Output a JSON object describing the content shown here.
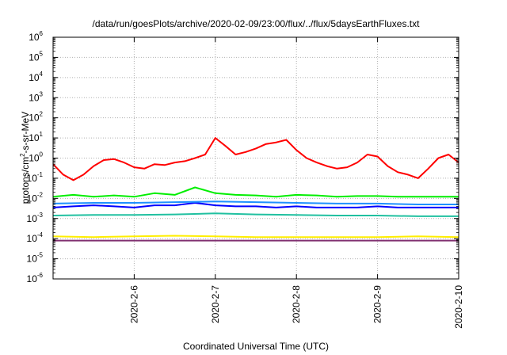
{
  "chart_data": {
    "type": "line",
    "title": "/data/run/goesPlots/archive/2020-02-09/23:00/flux/../flux/5daysEarthFluxes.txt",
    "xlabel": "Coordinated Universal Time (UTC)",
    "ylabel": {
      "base": "protons/cm",
      "superscript": "2",
      "rest": "-s-sr-MeV"
    },
    "y_scale": "log",
    "ylim": [
      1e-06,
      1000000.0
    ],
    "y_ticks": [
      {
        "base": "10",
        "exp": "-6",
        "value": 1e-06
      },
      {
        "base": "10",
        "exp": "-5",
        "value": 1e-05
      },
      {
        "base": "10",
        "exp": "-4",
        "value": 0.0001
      },
      {
        "base": "10",
        "exp": "-3",
        "value": 0.001
      },
      {
        "base": "10",
        "exp": "-2",
        "value": 0.01
      },
      {
        "base": "10",
        "exp": "-1",
        "value": 0.1
      },
      {
        "base": "10",
        "exp": "0",
        "value": 1
      },
      {
        "base": "10",
        "exp": "1",
        "value": 10
      },
      {
        "base": "10",
        "exp": "2",
        "value": 100
      },
      {
        "base": "10",
        "exp": "3",
        "value": 1000
      },
      {
        "base": "10",
        "exp": "4",
        "value": 10000
      },
      {
        "base": "10",
        "exp": "5",
        "value": 100000
      },
      {
        "base": "10",
        "exp": "6",
        "value": 1000000
      }
    ],
    "xlim": [
      "2020-02-05 00:00",
      "2020-02-10 00:00"
    ],
    "x_ticks": [
      "2020-2-6",
      "2020-2-7",
      "2020-2-8",
      "2020-2-9",
      "2020-2-10"
    ],
    "grid": true,
    "series": [
      {
        "color": "#ff0000",
        "x": [
          "2020-02-05 00:00",
          "2020-02-05 03:00",
          "2020-02-05 06:00",
          "2020-02-05 09:00",
          "2020-02-05 12:00",
          "2020-02-05 15:00",
          "2020-02-05 18:00",
          "2020-02-05 21:00",
          "2020-02-06 00:00",
          "2020-02-06 03:00",
          "2020-02-06 06:00",
          "2020-02-06 09:00",
          "2020-02-06 12:00",
          "2020-02-06 15:00",
          "2020-02-06 18:00",
          "2020-02-06 21:00",
          "2020-02-07 00:00",
          "2020-02-07 03:00",
          "2020-02-07 06:00",
          "2020-02-07 09:00",
          "2020-02-07 12:00",
          "2020-02-07 15:00",
          "2020-02-07 18:00",
          "2020-02-07 21:00",
          "2020-02-08 00:00",
          "2020-02-08 03:00",
          "2020-02-08 06:00",
          "2020-02-08 09:00",
          "2020-02-08 12:00",
          "2020-02-08 15:00",
          "2020-02-08 18:00",
          "2020-02-08 21:00",
          "2020-02-09 00:00",
          "2020-02-09 03:00",
          "2020-02-09 06:00",
          "2020-02-09 09:00",
          "2020-02-09 12:00",
          "2020-02-09 15:00",
          "2020-02-09 18:00",
          "2020-02-09 21:00",
          "2020-02-10 00:00"
        ],
        "y": [
          0.5,
          0.15,
          0.08,
          0.15,
          0.4,
          0.8,
          0.9,
          0.6,
          0.35,
          0.3,
          0.5,
          0.45,
          0.6,
          0.7,
          1.0,
          1.5,
          10,
          4,
          1.5,
          2,
          3,
          5,
          6,
          8,
          2.5,
          1.0,
          0.6,
          0.4,
          0.3,
          0.35,
          0.6,
          1.5,
          1.2,
          0.4,
          0.2,
          0.15,
          0.1,
          0.3,
          1.0,
          1.5,
          0.6
        ]
      },
      {
        "color": "#00ee00",
        "x": [
          "2020-02-05 00:00",
          "2020-02-05 06:00",
          "2020-02-05 12:00",
          "2020-02-05 18:00",
          "2020-02-06 00:00",
          "2020-02-06 06:00",
          "2020-02-06 12:00",
          "2020-02-06 18:00",
          "2020-02-07 00:00",
          "2020-02-07 06:00",
          "2020-02-07 12:00",
          "2020-02-07 18:00",
          "2020-02-08 00:00",
          "2020-02-08 06:00",
          "2020-02-08 12:00",
          "2020-02-08 18:00",
          "2020-02-09 00:00",
          "2020-02-09 06:00",
          "2020-02-09 12:00",
          "2020-02-09 18:00",
          "2020-02-10 00:00"
        ],
        "y": [
          0.012,
          0.015,
          0.012,
          0.014,
          0.012,
          0.018,
          0.015,
          0.035,
          0.018,
          0.015,
          0.014,
          0.012,
          0.015,
          0.014,
          0.012,
          0.013,
          0.013,
          0.012,
          0.012,
          0.012,
          0.012
        ]
      },
      {
        "color": "#0000ff",
        "x": [
          "2020-02-05 00:00",
          "2020-02-05 06:00",
          "2020-02-05 12:00",
          "2020-02-05 18:00",
          "2020-02-06 00:00",
          "2020-02-06 06:00",
          "2020-02-06 12:00",
          "2020-02-06 18:00",
          "2020-02-07 00:00",
          "2020-02-07 06:00",
          "2020-02-07 12:00",
          "2020-02-07 18:00",
          "2020-02-08 00:00",
          "2020-02-08 06:00",
          "2020-02-08 12:00",
          "2020-02-08 18:00",
          "2020-02-09 00:00",
          "2020-02-09 06:00",
          "2020-02-09 12:00",
          "2020-02-09 18:00",
          "2020-02-10 00:00"
        ],
        "y": [
          0.0035,
          0.004,
          0.0045,
          0.004,
          0.0035,
          0.0045,
          0.0045,
          0.006,
          0.0045,
          0.004,
          0.004,
          0.0035,
          0.004,
          0.0035,
          0.0035,
          0.0035,
          0.004,
          0.0035,
          0.0035,
          0.0035,
          0.0035
        ]
      },
      {
        "color": "#1e90ff",
        "x": [
          "2020-02-05 00:00",
          "2020-02-05 12:00",
          "2020-02-06 00:00",
          "2020-02-06 12:00",
          "2020-02-07 00:00",
          "2020-02-07 12:00",
          "2020-02-08 00:00",
          "2020-02-08 12:00",
          "2020-02-09 00:00",
          "2020-02-09 12:00",
          "2020-02-10 00:00"
        ],
        "y": [
          0.0055,
          0.006,
          0.006,
          0.0065,
          0.007,
          0.0065,
          0.006,
          0.0055,
          0.0055,
          0.005,
          0.005
        ]
      },
      {
        "color": "#20c0a0",
        "x": [
          "2020-02-05 00:00",
          "2020-02-05 12:00",
          "2020-02-06 00:00",
          "2020-02-06 12:00",
          "2020-02-07 00:00",
          "2020-02-07 12:00",
          "2020-02-08 00:00",
          "2020-02-08 12:00",
          "2020-02-09 00:00",
          "2020-02-09 12:00",
          "2020-02-10 00:00"
        ],
        "y": [
          0.0014,
          0.0015,
          0.0015,
          0.0016,
          0.0018,
          0.0016,
          0.0015,
          0.0014,
          0.0014,
          0.0013,
          0.0013
        ]
      },
      {
        "color": "#ffee00",
        "x": [
          "2020-02-05 00:00",
          "2020-02-05 12:00",
          "2020-02-06 00:00",
          "2020-02-06 12:00",
          "2020-02-07 00:00",
          "2020-02-07 12:00",
          "2020-02-08 00:00",
          "2020-02-08 12:00",
          "2020-02-09 00:00",
          "2020-02-09 12:00",
          "2020-02-10 00:00"
        ],
        "y": [
          0.00013,
          0.00012,
          0.00013,
          0.00014,
          0.00013,
          0.00012,
          0.00012,
          0.00012,
          0.00012,
          0.00013,
          0.00012
        ]
      },
      {
        "color": "#803070",
        "x": [
          "2020-02-05 00:00",
          "2020-02-05 12:00",
          "2020-02-06 00:00",
          "2020-02-06 12:00",
          "2020-02-07 00:00",
          "2020-02-07 12:00",
          "2020-02-08 00:00",
          "2020-02-08 12:00",
          "2020-02-09 00:00",
          "2020-02-09 12:00",
          "2020-02-10 00:00"
        ],
        "y": [
          8e-05,
          8e-05,
          8e-05,
          8e-05,
          8e-05,
          8e-05,
          8e-05,
          8e-05,
          8e-05,
          8e-05,
          8e-05
        ]
      }
    ]
  }
}
